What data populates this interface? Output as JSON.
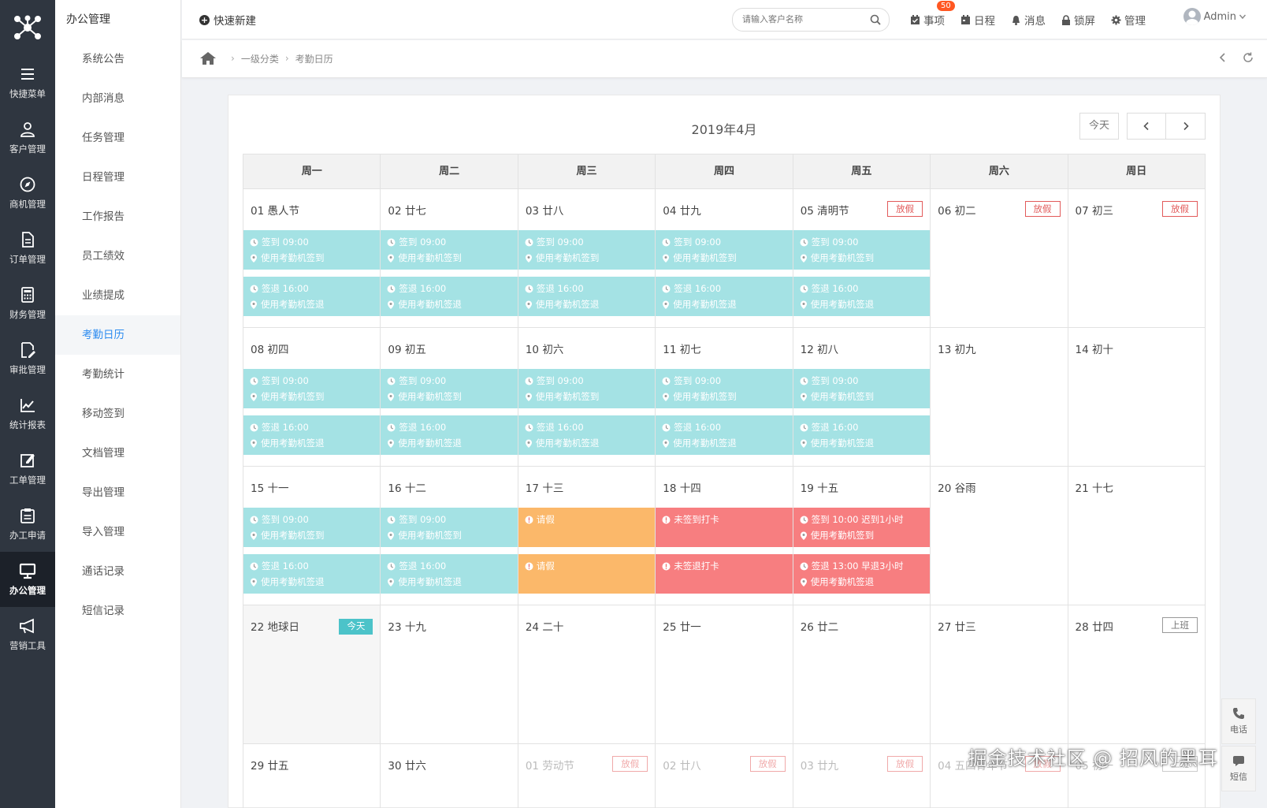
{
  "nav": {
    "items": [
      {
        "label": "快捷菜单",
        "icon": "menu-icon"
      },
      {
        "label": "客户管理",
        "icon": "customer-icon"
      },
      {
        "label": "商机管理",
        "icon": "compass-icon"
      },
      {
        "label": "订单管理",
        "icon": "document-icon"
      },
      {
        "label": "财务管理",
        "icon": "calculator-icon"
      },
      {
        "label": "审批管理",
        "icon": "edit-doc-icon"
      },
      {
        "label": "统计报表",
        "icon": "chart-icon"
      },
      {
        "label": "工单管理",
        "icon": "pencil-square-icon"
      },
      {
        "label": "办工申请",
        "icon": "clipboard-icon"
      },
      {
        "label": "办公管理",
        "icon": "monitor-icon"
      },
      {
        "label": "营销工具",
        "icon": "megaphone-icon"
      }
    ],
    "active_index": 9
  },
  "submenu": {
    "title": "办公管理",
    "items": [
      "系统公告",
      "内部消息",
      "任务管理",
      "日程管理",
      "工作报告",
      "员工绩效",
      "业绩提成",
      "考勤日历",
      "考勤统计",
      "移动签到",
      "文档管理",
      "导出管理",
      "导入管理",
      "通话记录",
      "短信记录"
    ],
    "active": "考勤日历"
  },
  "topbar": {
    "quick_new": "快速新建",
    "search_placeholder": "请输入客户名称",
    "links": {
      "tasks": "事项",
      "tasks_badge": "50",
      "schedule": "日程",
      "messages": "消息",
      "lock": "锁屏",
      "manage": "管理"
    },
    "user": "Admin"
  },
  "breadcrumb": {
    "level1": "一级分类",
    "level2": "考勤日历"
  },
  "calendar": {
    "title": "2019年4月",
    "today_btn": "今天",
    "weekdays": [
      "周一",
      "周二",
      "周三",
      "周四",
      "周五",
      "周六",
      "周日"
    ],
    "tags": {
      "holiday": "放假",
      "today": "今天",
      "work": "上班"
    },
    "event_text": {
      "checkin": "签到 09:00",
      "checkin_method": "使用考勤机签到",
      "checkout": "签退 16:00",
      "checkout_method": "使用考勤机签退",
      "leave": "请假",
      "no_checkin": "未签到打卡",
      "no_checkout": "未签退打卡",
      "late": "签到 10:00  迟到1小时",
      "early": "签退 13:00  早退3小时"
    },
    "colors": {
      "normal": "#a4e2e4",
      "leave": "#fbb86a",
      "abnormal": "#f77e80",
      "today_tag": "#4cc3c9"
    },
    "weeks": [
      [
        {
          "label": "01  愚人节",
          "events": "normal"
        },
        {
          "label": "02  廿七",
          "events": "normal"
        },
        {
          "label": "03  廿八",
          "events": "normal"
        },
        {
          "label": "04  廿九",
          "events": "normal"
        },
        {
          "label": "05  清明节",
          "tag": "holiday",
          "events": "normal"
        },
        {
          "label": "06  初二",
          "tag": "holiday"
        },
        {
          "label": "07  初三",
          "tag": "holiday"
        }
      ],
      [
        {
          "label": "08  初四",
          "events": "normal"
        },
        {
          "label": "09  初五",
          "events": "normal"
        },
        {
          "label": "10  初六",
          "events": "normal"
        },
        {
          "label": "11  初七",
          "events": "normal"
        },
        {
          "label": "12  初八",
          "events": "normal"
        },
        {
          "label": "13  初九"
        },
        {
          "label": "14  初十"
        }
      ],
      [
        {
          "label": "15  十一",
          "events": "normal"
        },
        {
          "label": "16  十二",
          "events": "normal"
        },
        {
          "label": "17  十三",
          "events": "leave"
        },
        {
          "label": "18 十四",
          "events": "missing"
        },
        {
          "label": "19  十五",
          "events": "late"
        },
        {
          "label": "20  谷雨"
        },
        {
          "label": "21  十七"
        }
      ],
      [
        {
          "label": "22  地球日",
          "tag": "today",
          "today": true
        },
        {
          "label": "23  十九"
        },
        {
          "label": "24  二十"
        },
        {
          "label": "25 廿一"
        },
        {
          "label": "26   廿二"
        },
        {
          "label": "27  廿三"
        },
        {
          "label": "28  廿四",
          "tag": "work"
        }
      ],
      [
        {
          "label": "29  廿五"
        },
        {
          "label": "30  廿六"
        },
        {
          "label": "01  劳动节",
          "tag": "holiday",
          "dim": true
        },
        {
          "label": "02  廿八",
          "tag": "holiday",
          "dim": true
        },
        {
          "label": "03  廿九",
          "tag": "holiday",
          "dim": true
        },
        {
          "label": "04  五四青年节",
          "tag": "holiday",
          "dim": true
        },
        {
          "label": "05  初一",
          "tag": "work",
          "dim": true
        }
      ]
    ]
  },
  "float_buttons": {
    "phone": "电话",
    "sms": "短信"
  },
  "watermark": "掘金技术社区 @ 招风的黑耳"
}
